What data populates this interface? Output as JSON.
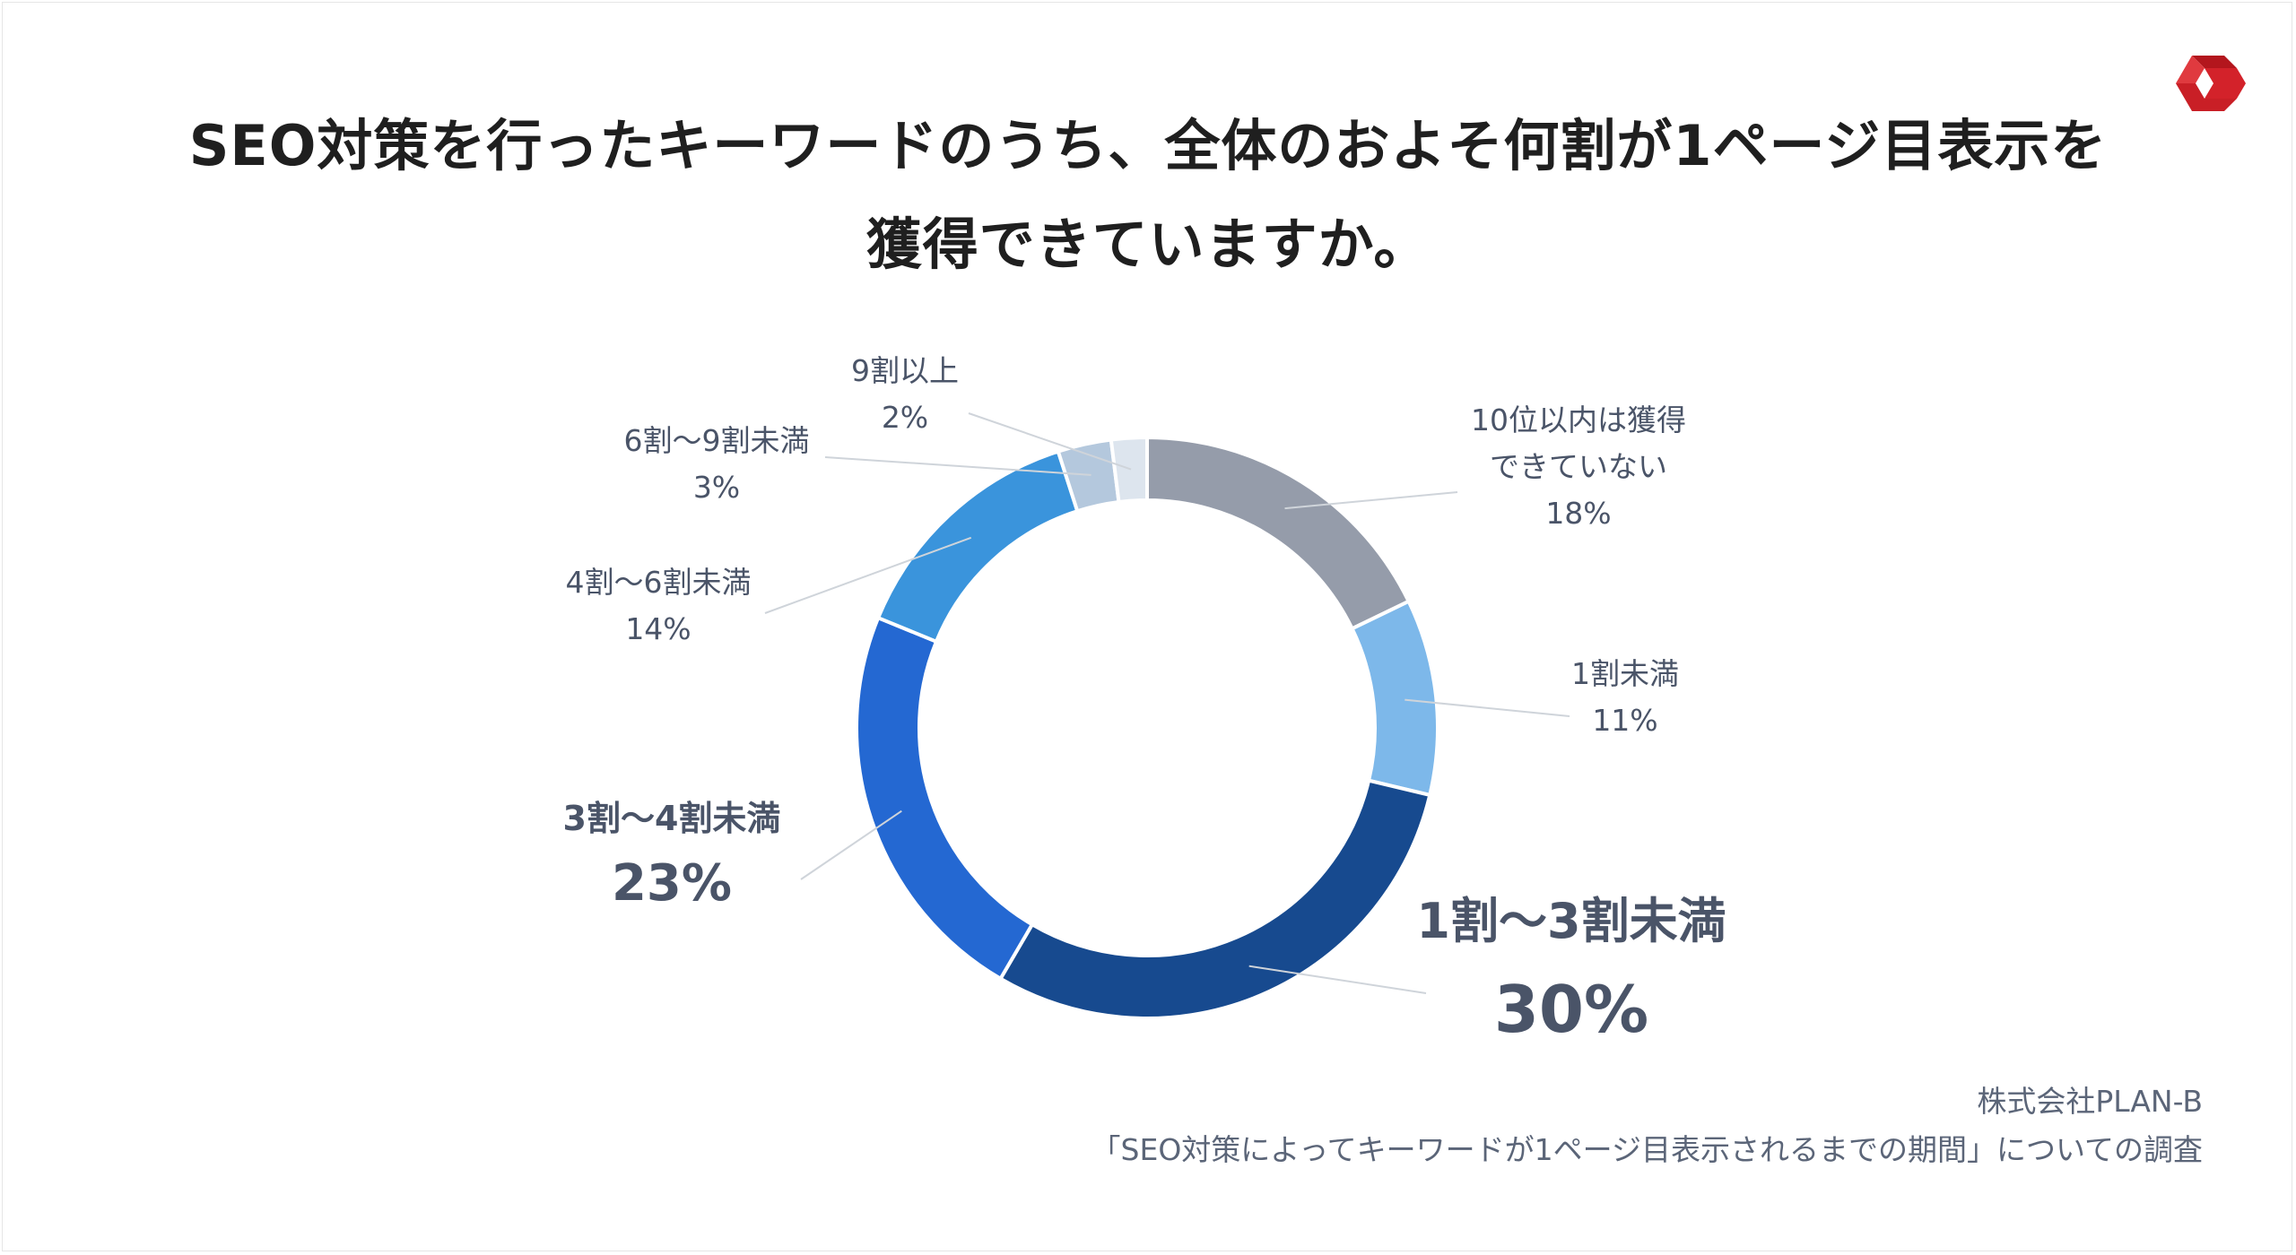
{
  "title_lines": [
    "SEO対策を行ったキーワードのうち、全体のおよそ何割が1ページ目表示を",
    "獲得できていますか。"
  ],
  "source": {
    "company": "株式会社PLAN-B",
    "survey": "「SEO対策によってキーワードが1ページ目表示されるまでの期間」についての調査"
  },
  "colors": {
    "brand_logo": "#d3222a",
    "highlight_dark": "#174a8f",
    "highlight_mid": "#2468d2"
  },
  "chart_data": {
    "type": "pie",
    "donut": true,
    "start": "12 o'clock, clockwise",
    "slices": [
      {
        "label": [
          "10位以内は獲得",
          "できていない"
        ],
        "value": 18,
        "value_label": "18%",
        "color": "#959caa",
        "emphasis": "normal"
      },
      {
        "label": [
          "1割未満"
        ],
        "value": 11,
        "value_label": "11%",
        "color": "#7db8ea",
        "emphasis": "normal"
      },
      {
        "label": [
          "1割〜3割未満"
        ],
        "value": 30,
        "value_label": "30%",
        "color": "#174a8f",
        "emphasis": "primary"
      },
      {
        "label": [
          "3割〜4割未満"
        ],
        "value": 23,
        "value_label": "23%",
        "color": "#2468d2",
        "emphasis": "secondary"
      },
      {
        "label": [
          "4割〜6割未満"
        ],
        "value": 14,
        "value_label": "14%",
        "color": "#3a94dc",
        "emphasis": "normal"
      },
      {
        "label": [
          "6割〜9割未満"
        ],
        "value": 3,
        "value_label": "3%",
        "color": "#b4c8dd",
        "emphasis": "normal"
      },
      {
        "label": [
          "9割以上"
        ],
        "value": 2,
        "value_label": "2%",
        "color": "#dde5ee",
        "emphasis": "normal"
      }
    ]
  }
}
